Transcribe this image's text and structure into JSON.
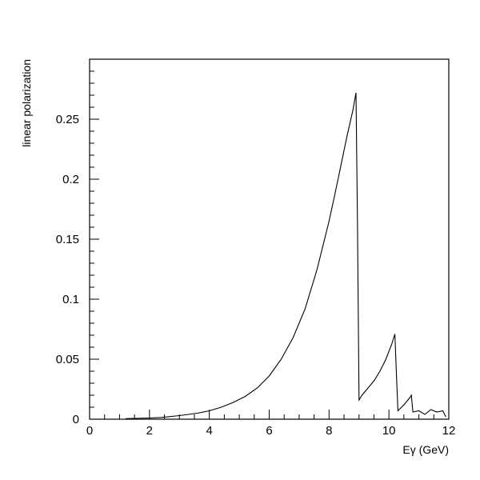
{
  "chart_data": {
    "type": "line",
    "title": "",
    "xlabel": "Eγ (GeV)",
    "ylabel": "linear polarization",
    "xlim": [
      0,
      12
    ],
    "ylim": [
      0,
      0.3
    ],
    "x_ticks": [
      "0",
      "2",
      "4",
      "6",
      "8",
      "10",
      "12"
    ],
    "y_ticks": [
      "0",
      "0.05",
      "0.1",
      "0.15",
      "0.2",
      "0.25"
    ],
    "grid": false,
    "legend": "none",
    "line_color": "#000000",
    "series": [
      {
        "x": [
          1.2,
          2.0,
          2.4,
          3.0,
          3.6,
          4.0,
          4.4,
          4.8,
          5.2,
          5.6,
          6.0,
          6.4,
          6.8,
          7.2,
          7.6,
          8.0,
          8.2,
          8.4,
          8.6,
          8.8,
          8.85,
          8.9,
          8.95,
          9.0,
          9.1,
          9.3,
          9.5,
          9.7,
          9.9,
          10.1,
          10.2,
          10.25,
          10.3,
          10.5,
          10.7,
          10.75,
          10.8,
          11.0,
          11.2,
          11.4,
          11.6,
          11.8,
          11.9
        ],
        "y": [
          0.0005,
          0.001,
          0.0015,
          0.003,
          0.005,
          0.007,
          0.01,
          0.014,
          0.019,
          0.026,
          0.036,
          0.05,
          0.068,
          0.092,
          0.125,
          0.165,
          0.188,
          0.212,
          0.236,
          0.258,
          0.265,
          0.272,
          0.16,
          0.016,
          0.02,
          0.026,
          0.032,
          0.04,
          0.05,
          0.063,
          0.071,
          0.038,
          0.007,
          0.012,
          0.018,
          0.02,
          0.006,
          0.007,
          0.004,
          0.008,
          0.006,
          0.007,
          0.002
        ]
      }
    ]
  }
}
